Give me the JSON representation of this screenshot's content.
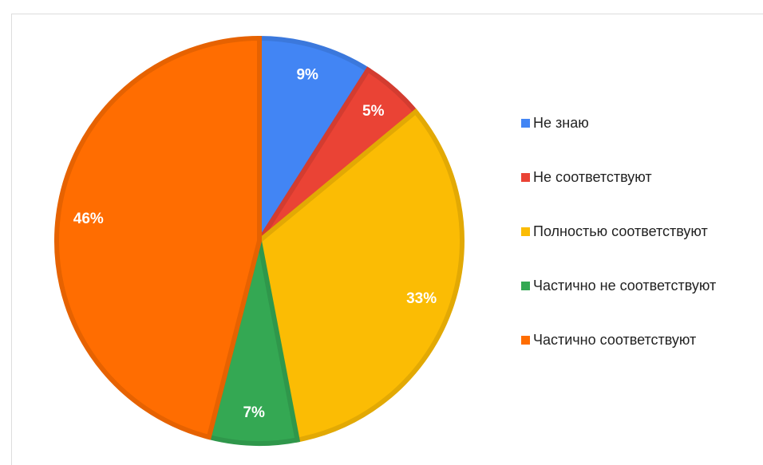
{
  "chart_data": {
    "type": "pie",
    "categories": [
      "Не знаю",
      "Не соответствуют",
      "Полностью соответствуют",
      "Частично не соответствуют",
      "Частично соответствуют"
    ],
    "values": [
      9,
      5,
      33,
      7,
      46
    ],
    "value_labels": [
      "9%",
      "5%",
      "33%",
      "7%",
      "46%"
    ],
    "colors": [
      "#4285f4",
      "#ea4335",
      "#fbbc04",
      "#34a853",
      "#ff6d01"
    ],
    "legend": "right"
  }
}
